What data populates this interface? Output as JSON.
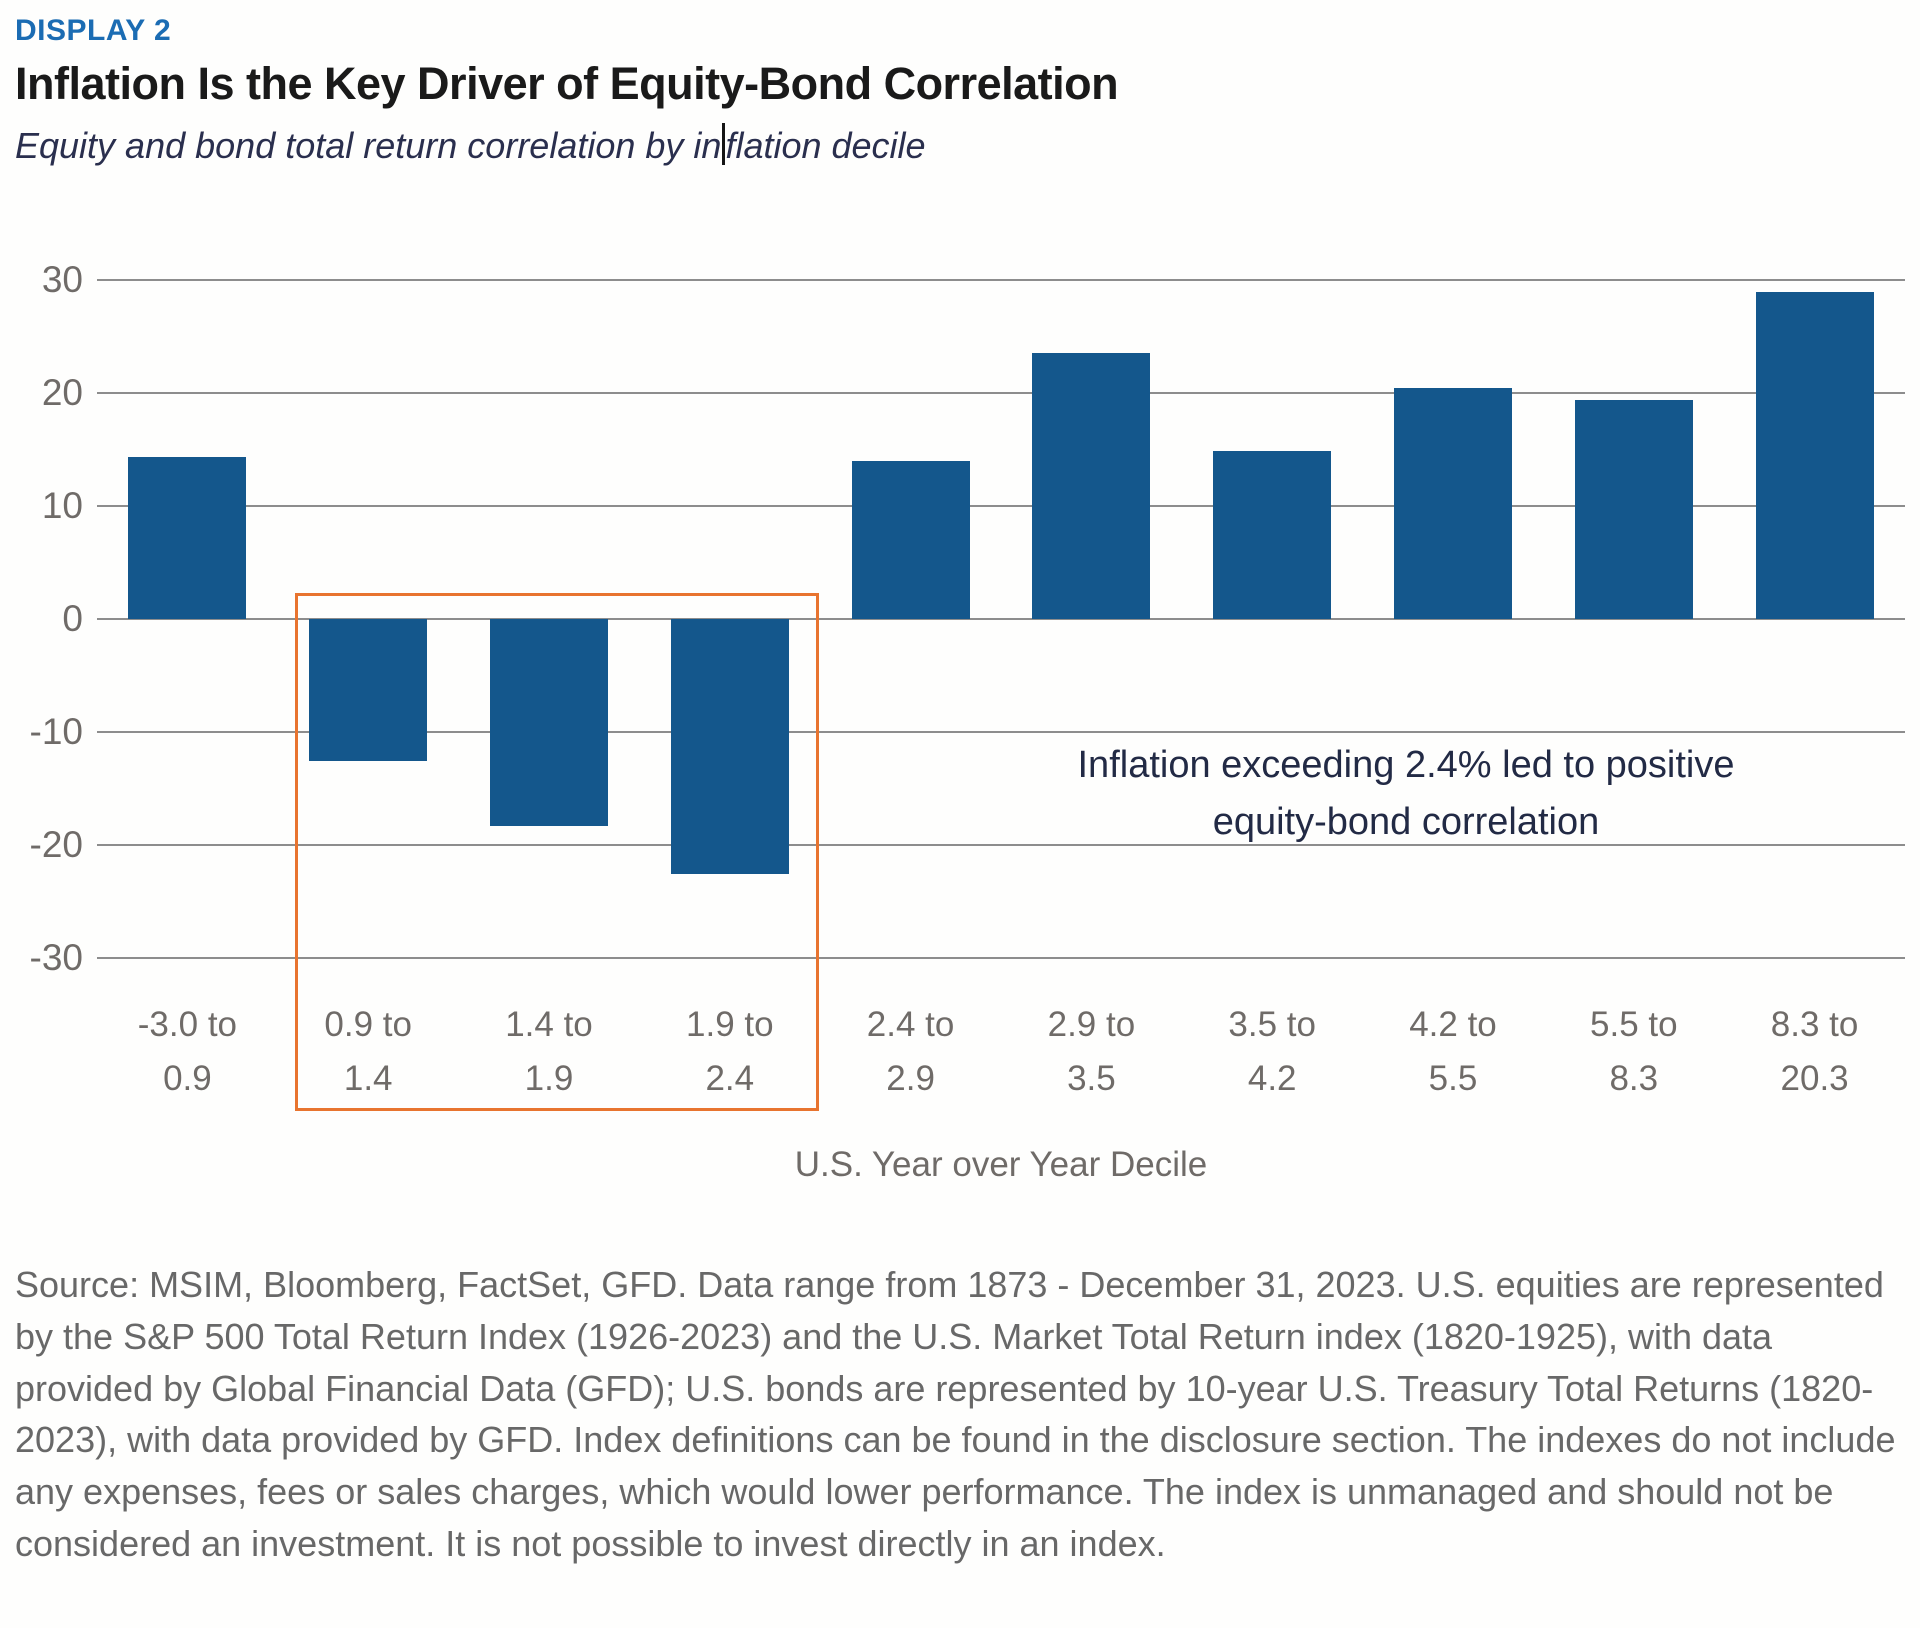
{
  "header": {
    "display_label": "DISPLAY 2",
    "title": "Inflation Is the Key Driver of Equity-Bond Correlation",
    "subtitle": "Equity and bond total return correlation by inflation decile",
    "subtitle_before_caret": "Equity and bond total return correlation by in",
    "subtitle_after_caret": "flation decile"
  },
  "chart_data": {
    "type": "bar",
    "categories": [
      "-3.0 to 0.9",
      "0.9 to 1.4",
      "1.4 to 1.9",
      "1.9 to 2.4",
      "2.4 to 2.9",
      "2.9 to 3.5",
      "3.5 to 4.2",
      "4.2 to 5.5",
      "5.5 to 8.3",
      "8.3 to 20.3"
    ],
    "values": [
      14.3,
      -12.6,
      -18.3,
      -22.6,
      14.0,
      23.5,
      14.9,
      20.4,
      19.4,
      28.9
    ],
    "title": "Inflation Is the Key Driver of Equity-Bond Correlation",
    "subtitle": "Equity and bond total return correlation by inflation decile",
    "xlabel": "U.S. Year over Year Decile",
    "ylabel": "",
    "ylim": [
      -33,
      36
    ],
    "yticks": [
      30,
      20,
      10,
      0,
      -10,
      -20,
      -30
    ],
    "grid": "horizontal",
    "legend": "none",
    "annotation": "Inflation exceeding 2.4% led to positive equity-bond correlation",
    "highlight_box": {
      "from_category_index": 1,
      "to_category_index": 3
    }
  },
  "axis": {
    "x_title": "U.S. Year over Year Decile"
  },
  "annotation": {
    "line1": "Inflation exceeding 2.4% led to positive",
    "line2": "equity-bond correlation"
  },
  "source": {
    "text": "Source: MSIM, Bloomberg, FactSet, GFD. Data range from 1873 - December 31, 2023. U.S. equities are represented by the S&P 500 Total Return Index (1926-2023) and the U.S. Market Total Return index (1820-1925), with data provided by Global Financial Data (GFD); U.S. bonds are represented by 10-year U.S. Treasury Total Returns (1820-2023), with data provided by GFD. Index definitions can be found in the disclosure section. The indexes do not include any expenses, fees or sales charges, which would lower performance. The index is unmanaged and should not be considered an investment. It is not possible to invest directly in an index."
  },
  "colors": {
    "bar": "#14578C",
    "highlight_box": "#E8742F",
    "display_label": "#1B6CB3",
    "title": "#1A1A1A",
    "subtitle": "#2A2F4E",
    "annotation": "#222A45",
    "axis_text": "#6F6B68",
    "gridline": "#8D8D8D",
    "source_text": "#686868"
  }
}
